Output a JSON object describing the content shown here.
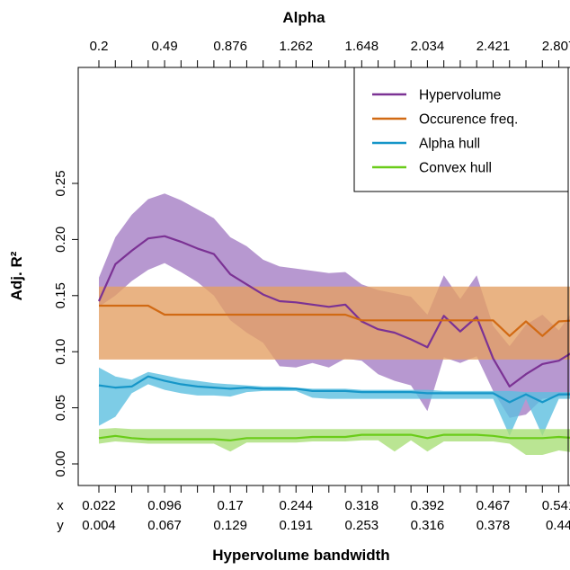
{
  "chart_data": {
    "type": "line",
    "xlabel": "Hypervolume bandwidth",
    "ylabel": "Adj. R²",
    "top_axis_title": "Alpha",
    "ylim": [
      -0.01,
      0.28
    ],
    "y_ticks": [
      "0.00",
      "0.05",
      "0.10",
      "0.15",
      "0.20",
      "0.25"
    ],
    "top_ticks": [
      "0.2",
      "0.49",
      "0.876",
      "1.262",
      "1.648",
      "2.034",
      "2.421",
      "2.807"
    ],
    "bottom_tick_prefixes": [
      "x",
      "y"
    ],
    "bottom_ticks_x": [
      "0.022",
      "0.096",
      "0.17",
      "0.244",
      "0.318",
      "0.392",
      "0.467",
      "0.541"
    ],
    "bottom_ticks_y": [
      "0.004",
      "0.067",
      "0.129",
      "0.191",
      "0.253",
      "0.316",
      "0.378",
      "0.44"
    ],
    "legend_position": "top-right",
    "grid": false,
    "x": [
      0.022,
      0.041,
      0.059,
      0.078,
      0.096,
      0.115,
      0.133,
      0.152,
      0.17,
      0.189,
      0.207,
      0.226,
      0.244,
      0.263,
      0.281,
      0.3,
      0.318,
      0.337,
      0.355,
      0.374,
      0.392,
      0.411,
      0.429,
      0.448,
      0.467,
      0.485,
      0.504,
      0.522,
      0.541,
      0.56
    ],
    "series": [
      {
        "name": "Hypervolume",
        "color": "#7b3294",
        "band_color": "#a57ec4",
        "values": [
          0.145,
          0.178,
          0.19,
          0.201,
          0.203,
          0.198,
          0.192,
          0.187,
          0.169,
          0.16,
          0.151,
          0.145,
          0.144,
          0.142,
          0.14,
          0.142,
          0.127,
          0.12,
          0.117,
          0.111,
          0.104,
          0.132,
          0.118,
          0.131,
          0.094,
          0.069,
          0.08,
          0.089,
          0.092,
          0.101
        ],
        "lower": [
          0.14,
          0.15,
          0.163,
          0.173,
          0.179,
          0.171,
          0.162,
          0.15,
          0.128,
          0.117,
          0.108,
          0.087,
          0.086,
          0.09,
          0.086,
          0.094,
          0.092,
          0.08,
          0.074,
          0.07,
          0.047,
          0.095,
          0.09,
          0.096,
          0.065,
          0.041,
          0.044,
          0.058,
          0.06,
          0.062
        ],
        "upper": [
          0.166,
          0.202,
          0.222,
          0.236,
          0.241,
          0.235,
          0.227,
          0.219,
          0.202,
          0.194,
          0.182,
          0.176,
          0.174,
          0.172,
          0.17,
          0.171,
          0.16,
          0.155,
          0.152,
          0.149,
          0.133,
          0.168,
          0.147,
          0.168,
          0.123,
          0.105,
          0.124,
          0.133,
          0.119,
          0.139
        ]
      },
      {
        "name": "Occurence freq.",
        "color": "#d16a14",
        "band_color": "#e3a064",
        "values": [
          0.141,
          0.141,
          0.141,
          0.141,
          0.133,
          0.133,
          0.133,
          0.133,
          0.133,
          0.133,
          0.133,
          0.133,
          0.133,
          0.133,
          0.133,
          0.133,
          0.128,
          0.128,
          0.128,
          0.128,
          0.128,
          0.128,
          0.128,
          0.128,
          0.128,
          0.114,
          0.127,
          0.114,
          0.127,
          0.128
        ],
        "lower": [
          0.093,
          0.093,
          0.093,
          0.093,
          0.093,
          0.093,
          0.093,
          0.093,
          0.093,
          0.093,
          0.093,
          0.093,
          0.093,
          0.093,
          0.093,
          0.093,
          0.093,
          0.093,
          0.093,
          0.093,
          0.093,
          0.093,
          0.093,
          0.093,
          0.093,
          0.093,
          0.093,
          0.093,
          0.093,
          0.093
        ],
        "upper": [
          0.158,
          0.158,
          0.158,
          0.158,
          0.158,
          0.158,
          0.158,
          0.158,
          0.158,
          0.158,
          0.158,
          0.158,
          0.158,
          0.158,
          0.158,
          0.158,
          0.158,
          0.158,
          0.158,
          0.158,
          0.158,
          0.158,
          0.158,
          0.158,
          0.158,
          0.158,
          0.158,
          0.158,
          0.158,
          0.158
        ]
      },
      {
        "name": "Alpha hull",
        "color": "#1696c8",
        "band_color": "#5cbfe0",
        "values": [
          0.07,
          0.068,
          0.069,
          0.078,
          0.074,
          0.071,
          0.069,
          0.068,
          0.067,
          0.068,
          0.067,
          0.067,
          0.067,
          0.065,
          0.065,
          0.065,
          0.064,
          0.064,
          0.064,
          0.064,
          0.063,
          0.063,
          0.063,
          0.063,
          0.063,
          0.055,
          0.062,
          0.055,
          0.062,
          0.062
        ],
        "lower": [
          0.034,
          0.042,
          0.063,
          0.071,
          0.066,
          0.063,
          0.061,
          0.061,
          0.06,
          0.064,
          0.065,
          0.065,
          0.065,
          0.059,
          0.058,
          0.058,
          0.058,
          0.058,
          0.058,
          0.058,
          0.058,
          0.058,
          0.058,
          0.058,
          0.058,
          0.025,
          0.058,
          0.025,
          0.058,
          0.058
        ],
        "upper": [
          0.086,
          0.078,
          0.075,
          0.082,
          0.079,
          0.076,
          0.074,
          0.072,
          0.071,
          0.07,
          0.069,
          0.069,
          0.068,
          0.067,
          0.067,
          0.067,
          0.066,
          0.066,
          0.066,
          0.066,
          0.066,
          0.065,
          0.065,
          0.065,
          0.065,
          0.065,
          0.064,
          0.064,
          0.064,
          0.064
        ]
      },
      {
        "name": "Convex hull",
        "color": "#6acc19",
        "band_color": "#a9df78",
        "values": [
          0.023,
          0.025,
          0.023,
          0.022,
          0.022,
          0.022,
          0.022,
          0.022,
          0.021,
          0.023,
          0.023,
          0.023,
          0.023,
          0.024,
          0.024,
          0.024,
          0.026,
          0.026,
          0.026,
          0.026,
          0.023,
          0.026,
          0.026,
          0.026,
          0.025,
          0.023,
          0.023,
          0.023,
          0.024,
          0.023
        ],
        "lower": [
          0.018,
          0.02,
          0.019,
          0.018,
          0.018,
          0.018,
          0.018,
          0.018,
          0.011,
          0.019,
          0.019,
          0.019,
          0.019,
          0.02,
          0.02,
          0.02,
          0.021,
          0.021,
          0.011,
          0.021,
          0.011,
          0.02,
          0.02,
          0.02,
          0.02,
          0.018,
          0.008,
          0.008,
          0.012,
          0.01
        ],
        "upper": [
          0.031,
          0.032,
          0.031,
          0.031,
          0.031,
          0.031,
          0.031,
          0.031,
          0.031,
          0.031,
          0.031,
          0.031,
          0.031,
          0.031,
          0.031,
          0.031,
          0.031,
          0.031,
          0.031,
          0.031,
          0.031,
          0.031,
          0.031,
          0.031,
          0.031,
          0.031,
          0.031,
          0.031,
          0.031,
          0.031
        ]
      }
    ]
  }
}
